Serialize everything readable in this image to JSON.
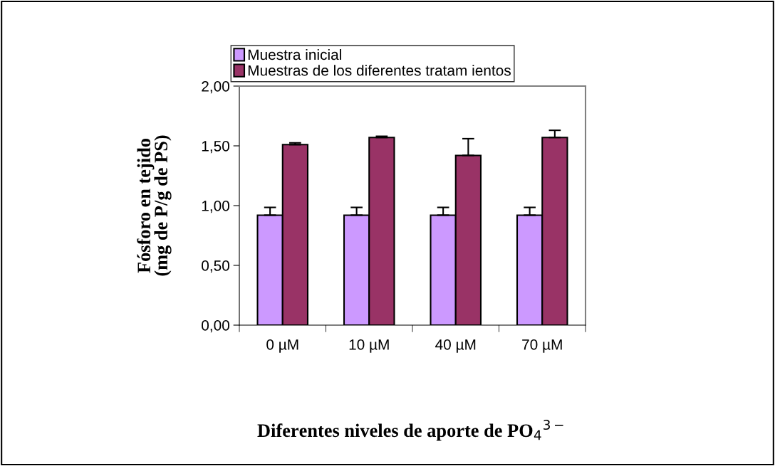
{
  "chart_data": {
    "type": "bar",
    "xlabel": "Diferentes niveles de aporte de PO$_{4}$$^{3−}$",
    "ylabel": "Fósforo en tejido\n(mg de P/g de PS)",
    "categories": [
      "0 µM",
      "10 µM",
      "40 µM",
      "70 µM"
    ],
    "series": [
      {
        "name": "Muestra inicial",
        "color": "#cc99ff",
        "values": [
          0.92,
          0.92,
          0.92,
          0.92
        ],
        "errors": [
          0.065,
          0.065,
          0.065,
          0.065
        ]
      },
      {
        "name": "Muestras de los diferentes tratam ientos",
        "color": "#993366",
        "values": [
          1.51,
          1.57,
          1.42,
          1.57
        ],
        "errors": [
          0.015,
          0.01,
          0.14,
          0.06
        ]
      }
    ],
    "ylim": [
      0,
      2
    ],
    "yticks": [
      {
        "value": 0,
        "label": "0,00"
      },
      {
        "value": 0.5,
        "label": "0,50"
      },
      {
        "value": 1,
        "label": "1,00"
      },
      {
        "value": 1.5,
        "label": "1,50"
      },
      {
        "value": 2,
        "label": "2,00"
      }
    ],
    "grid": false,
    "legend": "top"
  }
}
